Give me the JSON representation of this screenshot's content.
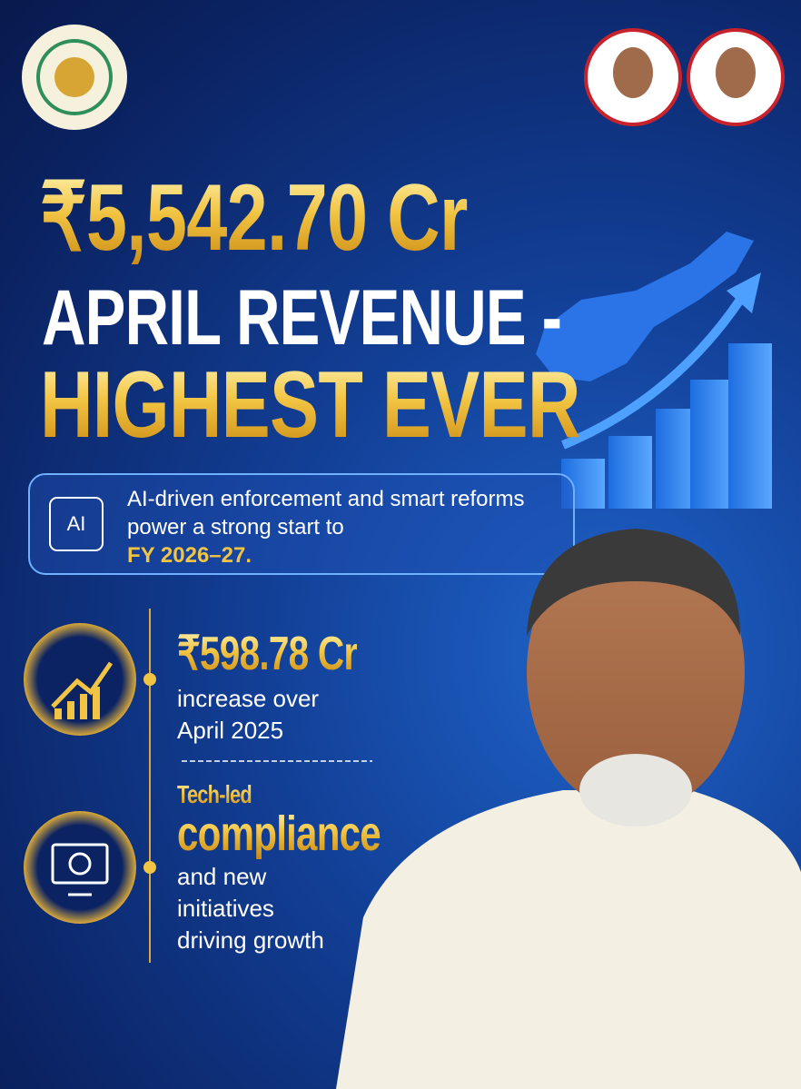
{
  "headline": {
    "amount": "₹5,542.70 Cr",
    "line1": "APRIL REVENUE -",
    "line2": "HIGHEST EVER"
  },
  "highlight": {
    "icon": "AI",
    "text": "AI-driven enforcement and smart reforms power a strong start to",
    "emphasis": "FY 2026–27."
  },
  "stats": [
    {
      "amount": "₹598.78 Cr",
      "text_lines": [
        "increase over",
        "April 2025"
      ]
    },
    {
      "lead": "Tech-led",
      "emphasis": "compliance",
      "text_lines": [
        "and new",
        "initiatives",
        "driving growth"
      ]
    }
  ]
}
